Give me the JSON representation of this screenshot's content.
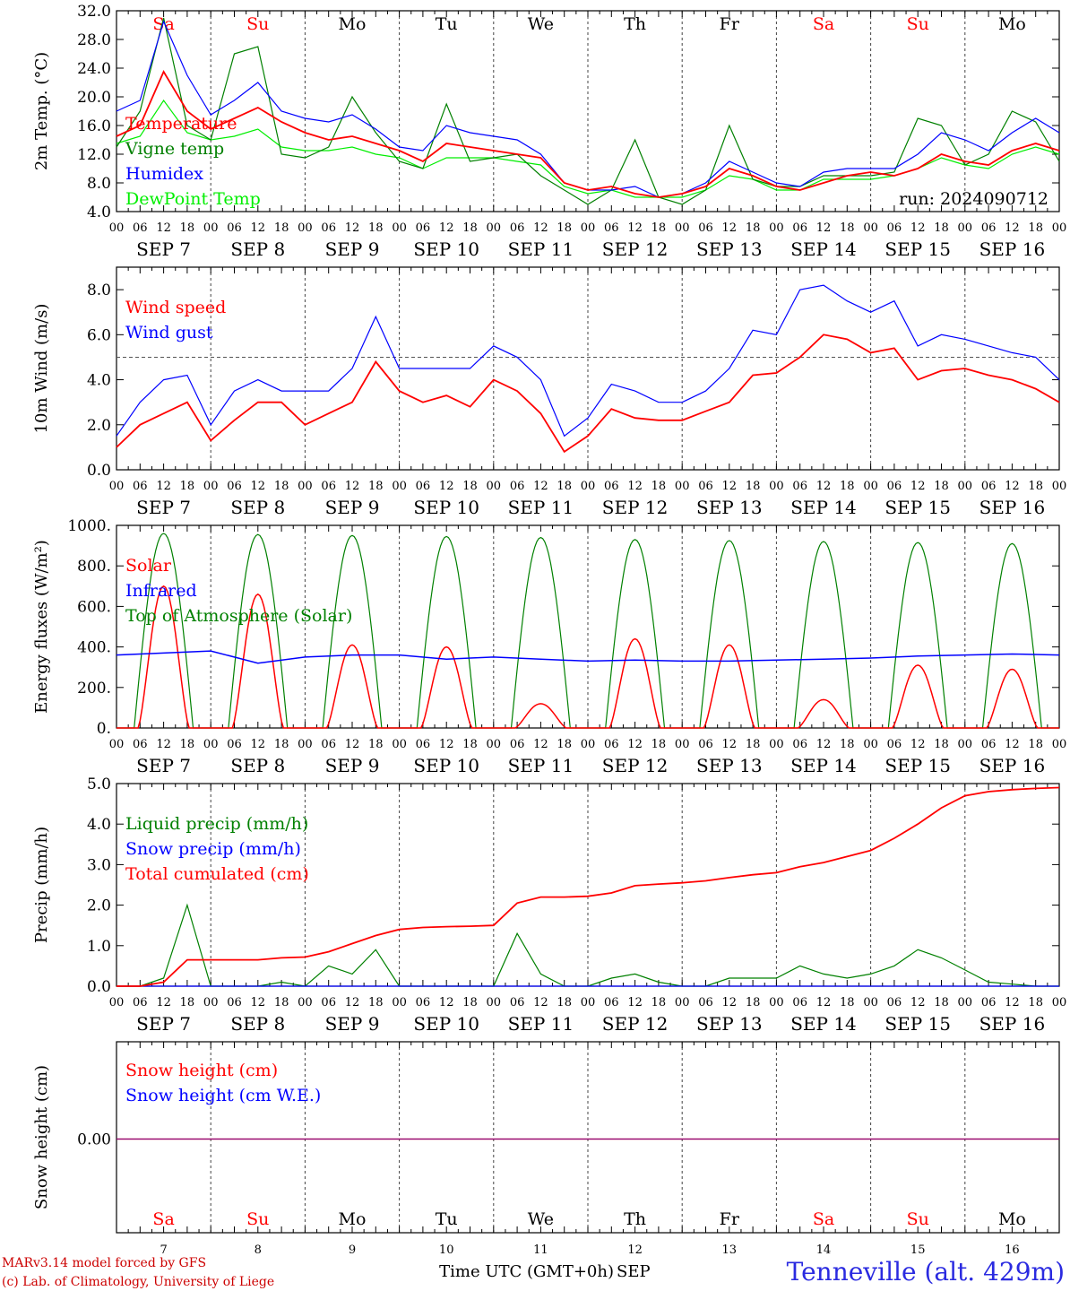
{
  "run_label": "run: 2024090712",
  "footer": {
    "model": "MARv3.14 model forced by GFS",
    "credit": "(c) Lab. of Climatology, University of Liege",
    "xlabel": "Time UTC (GMT+0h)",
    "month": "SEP",
    "station": "Tenneville (alt. 429m)"
  },
  "days": [
    {
      "dow": "Sa",
      "date": "SEP  7",
      "num": "7",
      "weekend": true
    },
    {
      "dow": "Su",
      "date": "SEP  8",
      "num": "8",
      "weekend": true
    },
    {
      "dow": "Mo",
      "date": "SEP  9",
      "num": "9",
      "weekend": false
    },
    {
      "dow": "Tu",
      "date": "SEP 10",
      "num": "10",
      "weekend": false
    },
    {
      "dow": "We",
      "date": "SEP 11",
      "num": "11",
      "weekend": false
    },
    {
      "dow": "Th",
      "date": "SEP 12",
      "num": "12",
      "weekend": false
    },
    {
      "dow": "Fr",
      "date": "SEP 13",
      "num": "13",
      "weekend": false
    },
    {
      "dow": "Sa",
      "date": "SEP 14",
      "num": "14",
      "weekend": true
    },
    {
      "dow": "Su",
      "date": "SEP 15",
      "num": "15",
      "weekend": true
    },
    {
      "dow": "Mo",
      "date": "SEP 16",
      "num": "16",
      "weekend": false
    }
  ],
  "hour_labels": [
    "00",
    "06",
    "12",
    "18"
  ],
  "colors": {
    "red": "#ff0000",
    "green": "#008000",
    "blue": "#0000ff",
    "lime": "#00ee00",
    "purple": "#800080",
    "weekend": "#ff0000",
    "footer": "#cc0000",
    "station": "#2a2ae0"
  },
  "chart_data": [
    {
      "type": "line",
      "ylabel": "2m Temp. (°C)",
      "ylim": [
        4,
        32
      ],
      "yticks": [
        "4.0",
        "8.0",
        "12.0",
        "16.0",
        "20.0",
        "24.0",
        "28.0",
        "32.0"
      ],
      "x": [
        0,
        6,
        12,
        18,
        24,
        30,
        36,
        42,
        48,
        54,
        60,
        66,
        72,
        78,
        84,
        90,
        96,
        102,
        108,
        114,
        120,
        126,
        132,
        138,
        144,
        150,
        156,
        162,
        168,
        174,
        180,
        186,
        192,
        198,
        204,
        210,
        216,
        222,
        228,
        234,
        240
      ],
      "series": [
        {
          "name": "Temperature",
          "color": "red",
          "values": [
            14.5,
            16,
            23.5,
            18,
            15.5,
            17,
            18.5,
            16.5,
            15,
            14,
            14.5,
            13.5,
            12.5,
            11,
            13.5,
            13,
            12.5,
            12,
            11.5,
            8,
            7,
            7.5,
            6.5,
            6,
            6.5,
            7.5,
            10,
            9,
            7.5,
            7,
            8,
            9,
            9.5,
            9,
            10,
            12,
            11,
            10.5,
            12.5,
            13.5,
            12.5
          ]
        },
        {
          "name": "Vigne temp",
          "color": "green",
          "values": [
            13,
            18,
            31,
            16,
            14,
            26,
            27,
            12,
            11.5,
            13,
            20,
            15,
            11,
            10,
            19,
            11,
            11.5,
            12,
            9,
            7,
            5,
            7,
            14,
            6,
            5,
            7,
            16,
            8.5,
            7.5,
            7.5,
            9,
            9,
            9,
            9.5,
            17,
            16,
            10.5,
            12,
            18,
            16.5,
            11
          ]
        },
        {
          "name": "Humidex",
          "color": "blue",
          "values": [
            18,
            19.5,
            30.5,
            23,
            17.5,
            19.5,
            22,
            18,
            17,
            16.5,
            17.5,
            15.5,
            13,
            12.5,
            16,
            15,
            14.5,
            14,
            12,
            8,
            7,
            7,
            7.5,
            6,
            6.5,
            8,
            11,
            9.5,
            8,
            7.5,
            9.5,
            10,
            10,
            10,
            12,
            15,
            14,
            12.5,
            15,
            17,
            15
          ]
        },
        {
          "name": "DewPoint Temp",
          "color": "lime",
          "values": [
            13.5,
            14.5,
            19.5,
            15,
            14,
            14.5,
            15.5,
            13,
            12.5,
            12.5,
            13,
            12,
            11.5,
            10,
            11.5,
            11.5,
            11.5,
            11,
            10.5,
            7.5,
            6.5,
            7,
            6,
            6,
            6,
            7,
            9,
            8.5,
            7,
            7,
            8.5,
            8.5,
            8.5,
            9,
            10,
            11.5,
            10.5,
            10,
            12,
            13,
            12
          ]
        }
      ]
    },
    {
      "type": "line",
      "ylabel": "10m Wind (m/s)",
      "ylim": [
        0,
        9
      ],
      "yticks": [
        "0.0",
        "2.0",
        "4.0",
        "6.0",
        "8.0"
      ],
      "reference_line": 5,
      "x": [
        0,
        6,
        12,
        18,
        24,
        30,
        36,
        42,
        48,
        54,
        60,
        66,
        72,
        78,
        84,
        90,
        96,
        102,
        108,
        114,
        120,
        126,
        132,
        138,
        144,
        150,
        156,
        162,
        168,
        174,
        180,
        186,
        192,
        198,
        204,
        210,
        216,
        222,
        228,
        234,
        240
      ],
      "series": [
        {
          "name": "Wind speed",
          "color": "red",
          "values": [
            1.0,
            2.0,
            2.5,
            3.0,
            1.3,
            2.2,
            3.0,
            3.0,
            2.0,
            2.5,
            3.0,
            4.8,
            3.5,
            3.0,
            3.3,
            2.8,
            4.0,
            3.5,
            2.5,
            0.8,
            1.5,
            2.7,
            2.3,
            2.2,
            2.2,
            2.6,
            3.0,
            4.2,
            4.3,
            5.0,
            6.0,
            5.8,
            5.2,
            5.4,
            4.0,
            4.4,
            4.5,
            4.2,
            4.0,
            3.6,
            3.0
          ]
        },
        {
          "name": "Wind gust",
          "color": "blue",
          "values": [
            1.5,
            3.0,
            4.0,
            4.2,
            2.0,
            3.5,
            4.0,
            3.5,
            3.5,
            3.5,
            4.5,
            6.8,
            4.5,
            4.5,
            4.5,
            4.5,
            5.5,
            5.0,
            4.0,
            1.5,
            2.3,
            3.8,
            3.5,
            3.0,
            3.0,
            3.5,
            4.5,
            6.2,
            6.0,
            8.0,
            8.2,
            7.5,
            7.0,
            7.5,
            5.5,
            6.0,
            5.8,
            5.5,
            5.2,
            5.0,
            4.0
          ]
        }
      ]
    },
    {
      "type": "line",
      "ylabel": "Energy fluxes (W/m²)",
      "ylim": [
        0,
        1000
      ],
      "yticks": [
        "0.",
        "200.",
        "400.",
        "600.",
        "800.",
        "1000."
      ],
      "solar_noon_peaks": {
        "days": [
          7,
          8,
          9,
          10,
          11,
          12,
          13,
          14,
          15,
          16
        ],
        "top_of_atmosphere": [
          960,
          955,
          950,
          945,
          940,
          930,
          925,
          920,
          915,
          910
        ],
        "solar": [
          700,
          660,
          410,
          400,
          120,
          440,
          410,
          140,
          310,
          290
        ]
      },
      "series": [
        {
          "name": "Solar",
          "color": "red"
        },
        {
          "name": "Infrared",
          "color": "blue",
          "x": [
            0,
            12,
            24,
            36,
            48,
            60,
            72,
            84,
            96,
            108,
            120,
            132,
            144,
            156,
            168,
            180,
            192,
            204,
            216,
            228,
            240
          ],
          "values": [
            360,
            370,
            380,
            320,
            350,
            360,
            360,
            340,
            350,
            340,
            330,
            335,
            330,
            330,
            335,
            340,
            345,
            355,
            360,
            365,
            360
          ]
        },
        {
          "name": "Top of Atmosphere (Solar)",
          "color": "green"
        }
      ]
    },
    {
      "type": "line",
      "ylabel": "Precip (mm/h)",
      "ylim": [
        0,
        5
      ],
      "yticks": [
        "0.0",
        "1.0",
        "2.0",
        "3.0",
        "4.0",
        "5.0"
      ],
      "x": [
        0,
        6,
        12,
        18,
        24,
        30,
        36,
        42,
        48,
        54,
        60,
        66,
        72,
        78,
        84,
        90,
        96,
        102,
        108,
        114,
        120,
        126,
        132,
        138,
        144,
        150,
        156,
        162,
        168,
        174,
        180,
        186,
        192,
        198,
        204,
        210,
        216,
        222,
        228,
        234,
        240
      ],
      "series": [
        {
          "name": "Liquid precip (mm/h)",
          "color": "green",
          "values": [
            0,
            0,
            0.2,
            2.0,
            0,
            0,
            0,
            0.1,
            0,
            0.5,
            0.3,
            0.9,
            0,
            0,
            0,
            0,
            0,
            1.3,
            0.3,
            0,
            0,
            0.2,
            0.3,
            0.1,
            0,
            0,
            0.2,
            0.2,
            0.2,
            0.5,
            0.3,
            0.2,
            0.3,
            0.5,
            0.9,
            0.7,
            0.4,
            0.1,
            0.05,
            0,
            0
          ]
        },
        {
          "name": "Snow precip (mm/h)",
          "color": "blue",
          "values": [
            0,
            0,
            0,
            0,
            0,
            0,
            0,
            0,
            0,
            0,
            0,
            0,
            0,
            0,
            0,
            0,
            0,
            0,
            0,
            0,
            0,
            0,
            0,
            0,
            0,
            0,
            0,
            0,
            0,
            0,
            0,
            0,
            0,
            0,
            0,
            0,
            0,
            0,
            0,
            0,
            0
          ]
        },
        {
          "name": "Total cumulated (cm)",
          "color": "red",
          "values": [
            0,
            0,
            0.1,
            0.65,
            0.65,
            0.65,
            0.65,
            0.7,
            0.72,
            0.85,
            1.05,
            1.25,
            1.4,
            1.45,
            1.47,
            1.48,
            1.5,
            2.05,
            2.2,
            2.2,
            2.22,
            2.3,
            2.48,
            2.52,
            2.55,
            2.6,
            2.68,
            2.75,
            2.8,
            2.95,
            3.05,
            3.2,
            3.35,
            3.65,
            4.0,
            4.4,
            4.7,
            4.8,
            4.85,
            4.88,
            4.9
          ]
        }
      ]
    },
    {
      "type": "line",
      "ylabel": "Snow height (cm)",
      "yticks": [
        "0.00"
      ],
      "series": [
        {
          "name": "Snow height (cm)",
          "color": "red",
          "values": [
            0,
            0
          ]
        },
        {
          "name": "Snow height (cm W.E.)",
          "color": "blue",
          "values": [
            0,
            0
          ]
        }
      ]
    }
  ]
}
